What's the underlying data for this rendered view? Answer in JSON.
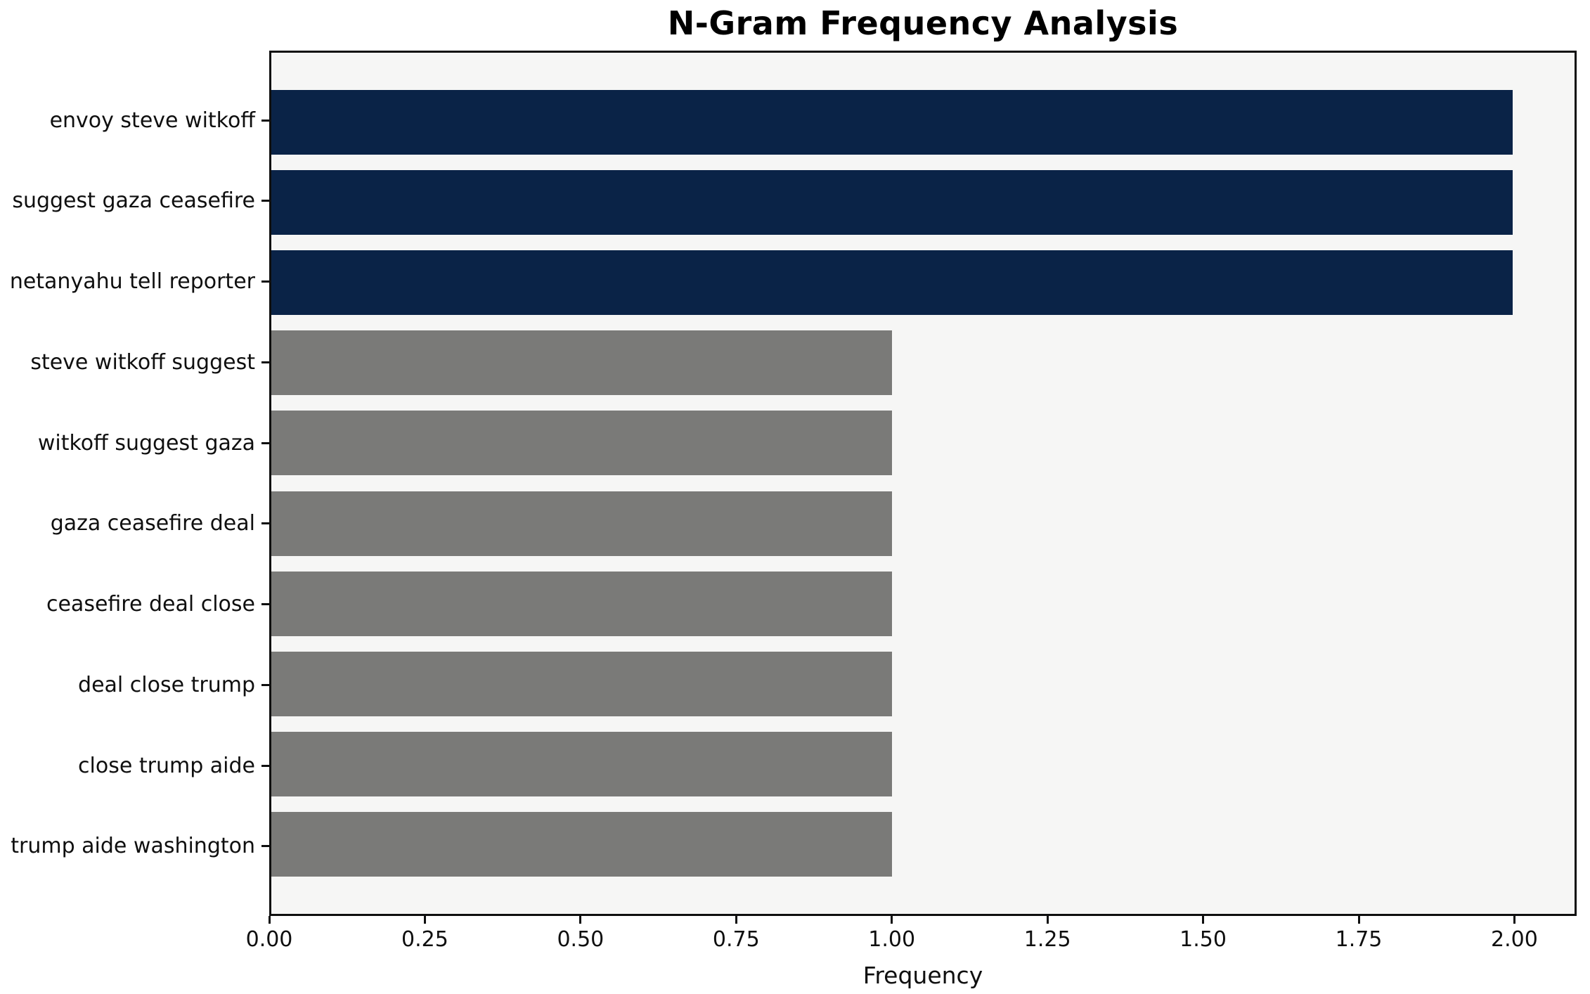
{
  "chart_data": {
    "type": "bar",
    "orientation": "horizontal",
    "title": "N-Gram Frequency Analysis",
    "xlabel": "Frequency",
    "ylabel": "",
    "categories": [
      "envoy steve witkoff",
      "suggest gaza ceasefire",
      "netanyahu tell reporter",
      "steve witkoff suggest",
      "witkoff suggest gaza",
      "gaza ceasefire deal",
      "ceasefire deal close",
      "deal close trump",
      "close trump aide",
      "trump aide washington"
    ],
    "values": [
      2,
      2,
      2,
      1,
      1,
      1,
      1,
      1,
      1,
      1
    ],
    "bar_colors": [
      "#0a2347",
      "#0a2347",
      "#0a2347",
      "#7a7a78",
      "#7a7a78",
      "#7a7a78",
      "#7a7a78",
      "#7a7a78",
      "#7a7a78",
      "#7a7a78"
    ],
    "xlim": [
      0,
      2.1
    ],
    "x_tick_values": [
      0,
      0.25,
      0.5,
      0.75,
      1.0,
      1.25,
      1.5,
      1.75,
      2.0
    ],
    "x_tick_labels": [
      "0.00",
      "0.25",
      "0.50",
      "0.75",
      "1.00",
      "1.25",
      "1.50",
      "1.75",
      "2.00"
    ],
    "grid": false,
    "legend": "none",
    "colors": {
      "highlight_bar": "#0a2347",
      "default_bar": "#7a7a78",
      "plot_background": "#f6f6f5",
      "figure_background": "#ffffff",
      "spine": "#0f0f0f",
      "text": "#000000"
    }
  }
}
